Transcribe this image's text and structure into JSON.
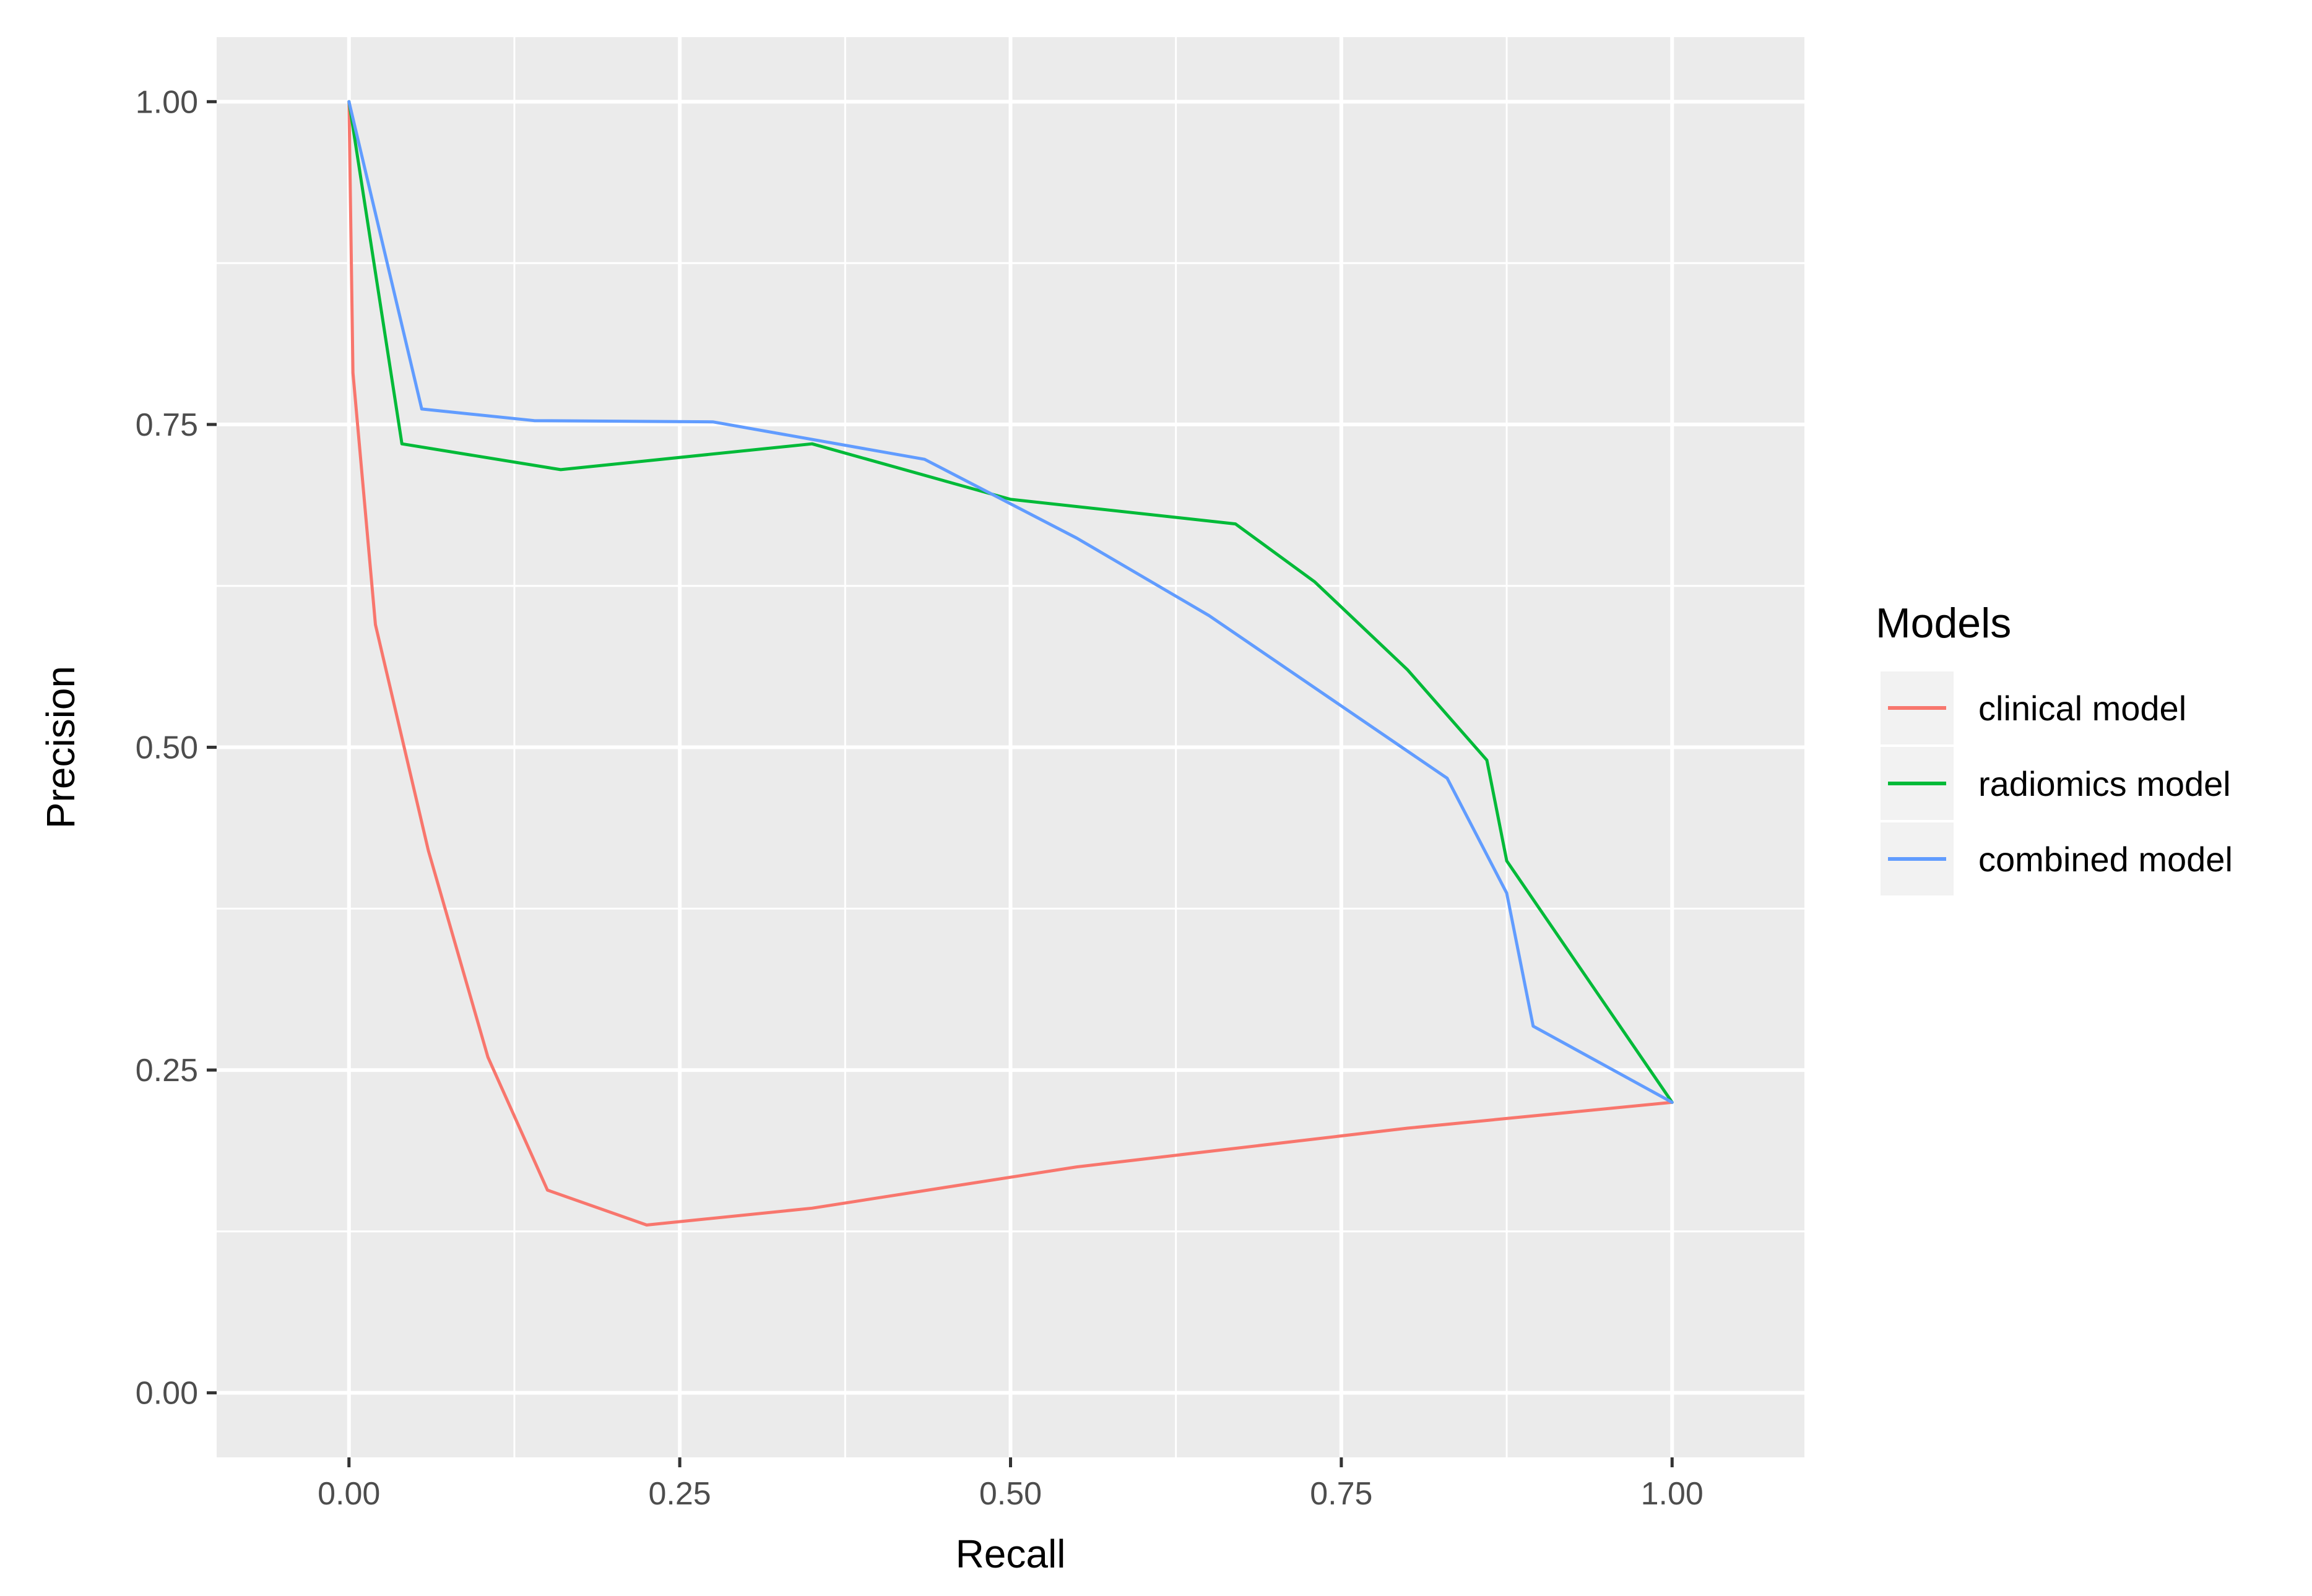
{
  "chart_data": {
    "type": "line",
    "xlabel": "Recall",
    "ylabel": "Precision",
    "xlim": [
      -0.1,
      1.1
    ],
    "ylim": [
      -0.05,
      1.05
    ],
    "xticks": [
      0,
      0.25,
      0.5,
      0.75,
      1
    ],
    "yticks": [
      0,
      0.25,
      0.5,
      0.75,
      1
    ],
    "xtick_labels": [
      "0.00",
      "0.25",
      "0.50",
      "0.75",
      "1.00"
    ],
    "ytick_labels": [
      "0.00",
      "0.25",
      "0.50",
      "0.75",
      "1.00"
    ],
    "grid": true,
    "legend": {
      "title": "Models",
      "position": "right"
    },
    "series": [
      {
        "name": "clinical model",
        "color": "#F8766D",
        "x": [
          0.0,
          0.003,
          0.02,
          0.06,
          0.105,
          0.15,
          0.225,
          0.35,
          0.55,
          0.8,
          1.0
        ],
        "y": [
          1.0,
          0.79,
          0.595,
          0.42,
          0.26,
          0.157,
          0.13,
          0.143,
          0.175,
          0.205,
          0.225
        ]
      },
      {
        "name": "radiomics model",
        "color": "#00BA38",
        "x": [
          0.0,
          0.04,
          0.16,
          0.35,
          0.5,
          0.67,
          0.73,
          0.8,
          0.86,
          0.875,
          1.0
        ],
        "y": [
          1.0,
          0.735,
          0.715,
          0.735,
          0.692,
          0.673,
          0.628,
          0.56,
          0.49,
          0.412,
          0.225
        ]
      },
      {
        "name": "combined model",
        "color": "#619CFF",
        "x": [
          0.0,
          0.055,
          0.14,
          0.275,
          0.435,
          0.55,
          0.65,
          0.83,
          0.875,
          0.895,
          1.0
        ],
        "y": [
          1.0,
          0.762,
          0.753,
          0.752,
          0.723,
          0.662,
          0.602,
          0.476,
          0.387,
          0.284,
          0.225
        ]
      }
    ]
  }
}
